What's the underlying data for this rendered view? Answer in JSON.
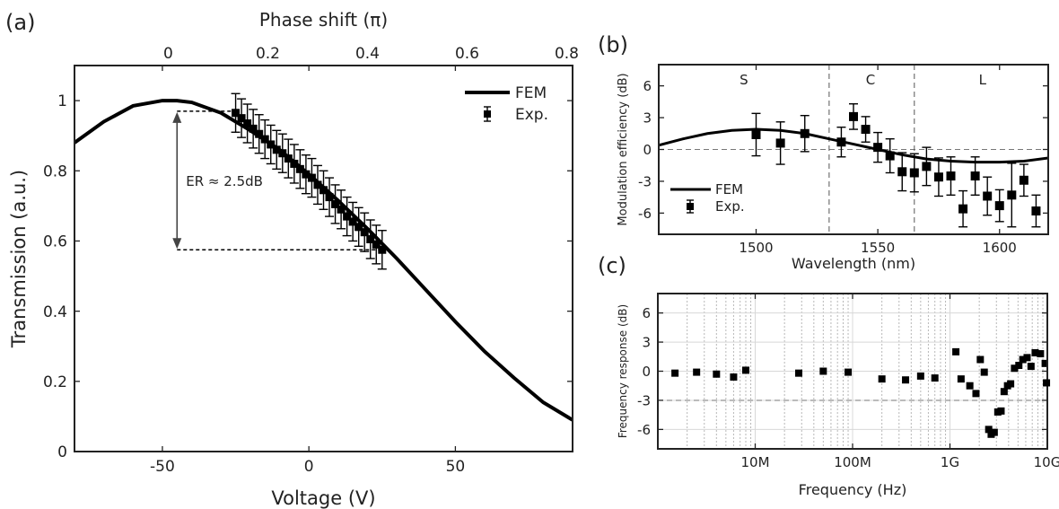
{
  "chart_data": [
    {
      "id": "a",
      "panel_label": "(a)",
      "type": "line",
      "xlabel": "Voltage (V)",
      "ylabel": "Transmission (a.u.)",
      "top_xlabel": "Phase shift (π)",
      "xlim": [
        -80,
        90
      ],
      "ylim": [
        0,
        1.1
      ],
      "xticks": [
        -50,
        0,
        50
      ],
      "yticks": [
        0,
        0.2,
        0.4,
        0.6,
        0.8,
        1
      ],
      "ytick_labels": [
        "0",
        "0.2",
        "0.4",
        "0.6",
        "0.8",
        "1"
      ],
      "top_xticks": [
        {
          "label": "0",
          "voltage": -48
        },
        {
          "label": "0.2",
          "voltage": -14
        },
        {
          "label": "0.4",
          "voltage": 20
        },
        {
          "label": "0.6",
          "voltage": 54
        },
        {
          "label": "0.8",
          "voltage": 88
        }
      ],
      "legend": {
        "position": "top-right",
        "entries": [
          "FEM",
          "Exp."
        ]
      },
      "annotation": {
        "text": "ER ≈ 2.5dB",
        "x": -45,
        "y_top": 0.97,
        "y_bottom": 0.575,
        "x_end_top": -25,
        "x_end_bottom": 25
      },
      "series": [
        {
          "name": "FEM",
          "kind": "line",
          "x": [
            -80,
            -70,
            -60,
            -50,
            -45,
            -40,
            -30,
            -20,
            -10,
            0,
            10,
            20,
            30,
            40,
            50,
            60,
            70,
            80,
            90
          ],
          "y": [
            0.88,
            0.94,
            0.985,
            1.0,
            1.0,
            0.995,
            0.965,
            0.915,
            0.86,
            0.79,
            0.715,
            0.635,
            0.55,
            0.46,
            0.37,
            0.285,
            0.21,
            0.14,
            0.09
          ]
        },
        {
          "name": "Exp.",
          "kind": "errorbar",
          "x": [
            -25,
            -23,
            -21,
            -19,
            -17,
            -15,
            -13,
            -11,
            -9,
            -7,
            -5,
            -3,
            -1,
            1,
            3,
            5,
            7,
            9,
            11,
            13,
            15,
            17,
            19,
            21,
            23,
            25
          ],
          "y": [
            0.965,
            0.95,
            0.935,
            0.92,
            0.905,
            0.89,
            0.875,
            0.86,
            0.85,
            0.835,
            0.82,
            0.805,
            0.79,
            0.78,
            0.76,
            0.745,
            0.725,
            0.705,
            0.69,
            0.67,
            0.655,
            0.64,
            0.625,
            0.605,
            0.59,
            0.575
          ],
          "err": 0.055
        }
      ]
    },
    {
      "id": "b",
      "panel_label": "(b)",
      "type": "line",
      "xlabel": "Wavelength (nm)",
      "ylabel": "Modulation efficiency (dB)",
      "xlim": [
        1460,
        1620
      ],
      "ylim": [
        -8,
        8
      ],
      "xticks": [
        1500,
        1550,
        1600
      ],
      "yticks": [
        -6,
        -3,
        0,
        3,
        6
      ],
      "band_lines": [
        1530,
        1565
      ],
      "band_labels": [
        {
          "text": "S",
          "x": 1495
        },
        {
          "text": "C",
          "x": 1547
        },
        {
          "text": "L",
          "x": 1593
        }
      ],
      "legend": {
        "position": "bottom-left",
        "entries": [
          "FEM",
          "Exp."
        ]
      },
      "series": [
        {
          "name": "FEM",
          "kind": "line",
          "x": [
            1460,
            1470,
            1480,
            1490,
            1500,
            1510,
            1520,
            1530,
            1540,
            1550,
            1560,
            1570,
            1580,
            1590,
            1600,
            1610,
            1620
          ],
          "y": [
            0.4,
            1.0,
            1.5,
            1.8,
            1.9,
            1.8,
            1.5,
            1.0,
            0.5,
            0.0,
            -0.5,
            -0.9,
            -1.1,
            -1.2,
            -1.2,
            -1.1,
            -0.8
          ]
        },
        {
          "name": "Exp.",
          "kind": "errorbar",
          "x": [
            1500,
            1510,
            1520,
            1535,
            1540,
            1545,
            1550,
            1555,
            1560,
            1565,
            1570,
            1575,
            1580,
            1585,
            1590,
            1595,
            1600,
            1605,
            1610,
            1615
          ],
          "y": [
            1.4,
            0.6,
            1.5,
            0.7,
            3.1,
            1.9,
            0.2,
            -0.6,
            -2.1,
            -2.2,
            -1.6,
            -2.6,
            -2.5,
            -5.6,
            -2.5,
            -4.4,
            -5.3,
            -4.3,
            -2.9,
            -5.8
          ],
          "err": [
            2.0,
            2.0,
            1.7,
            1.4,
            1.2,
            1.2,
            1.4,
            1.6,
            1.8,
            1.8,
            1.8,
            1.8,
            1.8,
            1.7,
            1.8,
            1.8,
            1.5,
            3.0,
            1.5,
            1.5
          ]
        }
      ]
    },
    {
      "id": "c",
      "panel_label": "(c)",
      "type": "scatter",
      "xlabel": "Frequency (Hz)",
      "ylabel": "Frequency response (dB)",
      "xscale": "log",
      "xlim": [
        1000000,
        10000000000
      ],
      "ylim": [
        -8,
        8
      ],
      "xticks": [
        10000000,
        100000000,
        1000000000,
        10000000000
      ],
      "xtick_labels": [
        "10M",
        "100M",
        "1G",
        "10G"
      ],
      "yticks": [
        -6,
        -3,
        0,
        3,
        6
      ],
      "reference_line": -3,
      "series": [
        {
          "name": "",
          "kind": "scatter",
          "x": [
            1500000,
            2500000,
            4000000,
            6000000,
            8000000,
            28000000,
            50000000,
            90000000,
            200000000,
            350000000,
            500000000,
            700000000,
            1150000000,
            1300000000,
            1600000000,
            1850000000,
            2050000000,
            2250000000,
            2500000000,
            2650000000,
            2850000000,
            3100000000,
            3350000000,
            3600000000,
            3900000000,
            4200000000,
            4600000000,
            5100000000,
            5600000000,
            6200000000,
            6800000000,
            7500000000,
            8500000000,
            9500000000
          ],
          "y": [
            -0.2,
            -0.1,
            -0.3,
            -0.6,
            0.1,
            -0.2,
            0.0,
            -0.1,
            -0.8,
            -0.9,
            -0.5,
            -0.7,
            2.0,
            -0.8,
            -1.5,
            -2.3,
            1.2,
            -0.1,
            -6.0,
            -6.5,
            -6.3,
            -4.2,
            -4.1,
            -2.1,
            -1.5,
            -1.3,
            0.3,
            0.6,
            1.2,
            1.4,
            0.5,
            1.9,
            1.8,
            0.8
          ]
        }
      ]
    }
  ],
  "extra_points_c": {
    "x": [
      9800000000
    ],
    "y": [
      -1.2
    ]
  }
}
